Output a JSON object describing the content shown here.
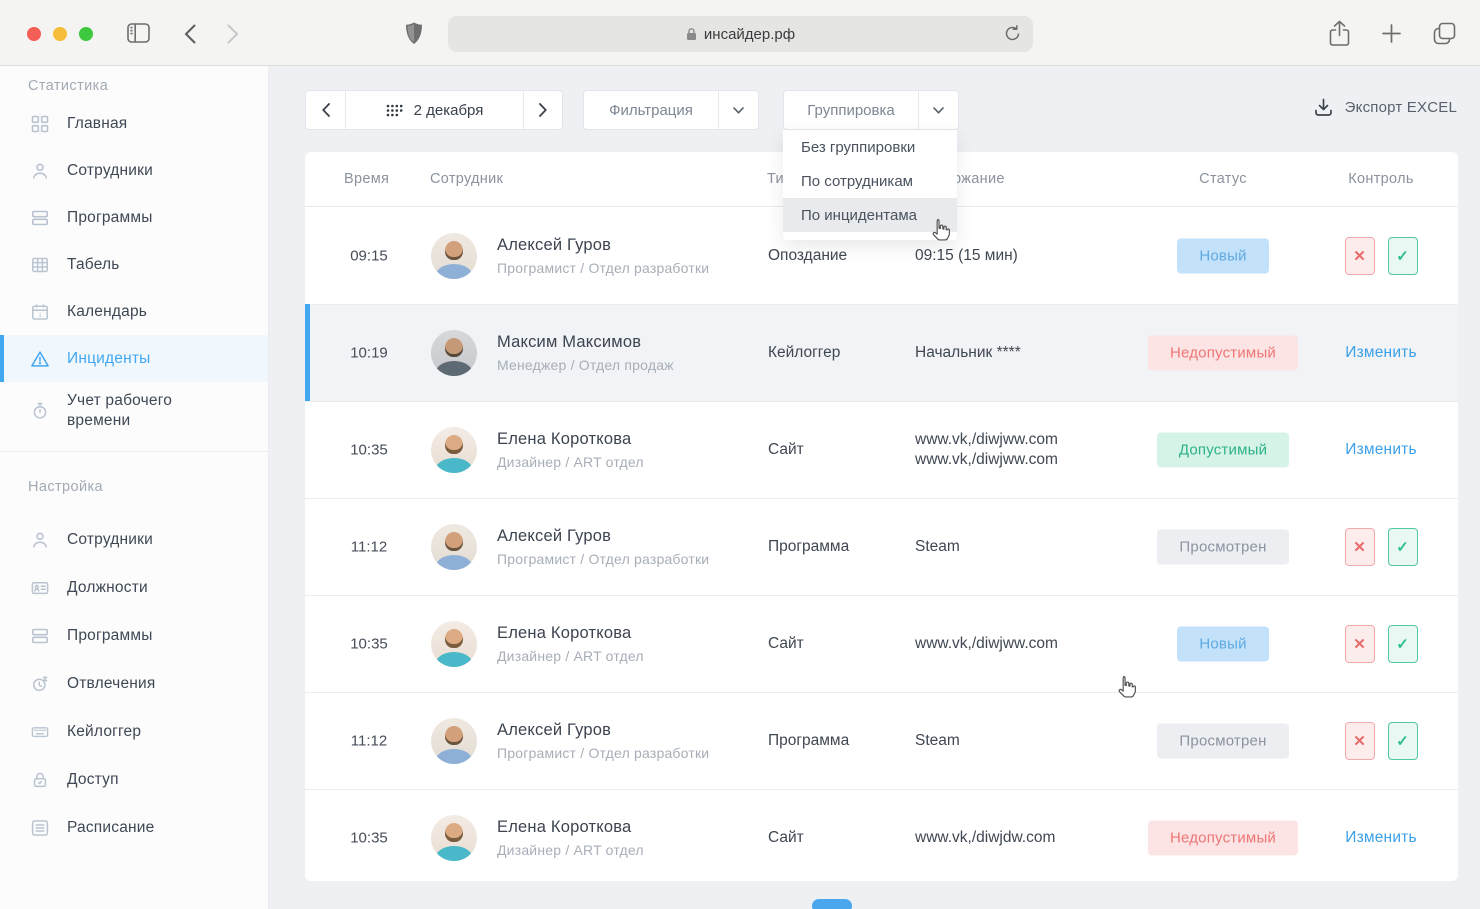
{
  "browser": {
    "url": "инсайдер.рф",
    "icons": [
      "sidebar-toggle-icon",
      "back-icon",
      "forward-icon",
      "shield-icon",
      "lock-icon",
      "reload-icon",
      "share-icon",
      "new-tab-icon",
      "tabs-icon"
    ]
  },
  "sidebar": {
    "sections": [
      {
        "label": "Статистика",
        "items": [
          {
            "icon": "dashboard-icon",
            "label": "Главная",
            "active": false
          },
          {
            "icon": "user-icon",
            "label": "Сотрудники",
            "active": false
          },
          {
            "icon": "programs-icon",
            "label": "Программы",
            "active": false
          },
          {
            "icon": "timesheet-icon",
            "label": "Табель",
            "active": false
          },
          {
            "icon": "calendar-icon",
            "label": "Календарь",
            "active": false
          },
          {
            "icon": "warning-icon",
            "label": "Инциденты",
            "active": true
          },
          {
            "icon": "stopwatch-icon",
            "label": "Учет рабочего времени",
            "active": false
          }
        ]
      },
      {
        "label": "Настройка",
        "items": [
          {
            "icon": "user-icon",
            "label": "Сотрудники",
            "active": false
          },
          {
            "icon": "idcard-icon",
            "label": "Должности",
            "active": false
          },
          {
            "icon": "programs-icon",
            "label": "Программы",
            "active": false
          },
          {
            "icon": "clock-z-icon",
            "label": "Отвлечения",
            "active": false
          },
          {
            "icon": "keyboard-icon",
            "label": "Кейлоггер",
            "active": false
          },
          {
            "icon": "lock-icon",
            "label": "Доступ",
            "active": false
          },
          {
            "icon": "list-icon",
            "label": "Расписание",
            "active": false
          }
        ]
      }
    ]
  },
  "toolbar": {
    "date_label": "2 декабря",
    "filter_label": "Фильтрация",
    "group_label": "Группировка",
    "group_menu": {
      "items": [
        "Без группировки",
        "По сотрудникам",
        "По инцидентама"
      ],
      "highlighted_index": 2
    },
    "export_label": "Экспорт EXCEL"
  },
  "table": {
    "headers": [
      "Время",
      "Сотрудник",
      "Тип",
      "Содержание",
      "Статус",
      "Контроль"
    ],
    "edit_label": "Изменить",
    "rows": [
      {
        "time": "09:15",
        "avatar": "alexey",
        "name": "Алексей Гуров",
        "role": "Програмист / Отдел разработки",
        "type": "Опоздание",
        "content": [
          "09:15 (15 мин)"
        ],
        "status": "Новый",
        "status_kind": "new",
        "control": "buttons",
        "highlighted": false
      },
      {
        "time": "10:19",
        "avatar": "maxim",
        "name": "Максим Максимов",
        "role": "Менеджер / Отдел продаж",
        "type": "Кейлоггер",
        "content": [
          "Начальник ****"
        ],
        "status": "Недопустимый",
        "status_kind": "invalid",
        "control": "edit",
        "highlighted": true
      },
      {
        "time": "10:35",
        "avatar": "elena",
        "name": "Елена Короткова",
        "role": "Дизайнер / ART отдел",
        "type": "Сайт",
        "content": [
          "www.vk,/diwjww.com",
          "www.vk,/diwjww.com"
        ],
        "status": "Допустимый",
        "status_kind": "valid",
        "control": "edit",
        "highlighted": false
      },
      {
        "time": "11:12",
        "avatar": "alexey",
        "name": "Алексей Гуров",
        "role": "Програмист / Отдел разработки",
        "type": "Программа",
        "content": [
          "Steam"
        ],
        "status": "Просмотрен",
        "status_kind": "viewed",
        "control": "buttons",
        "highlighted": false
      },
      {
        "time": "10:35",
        "avatar": "elena",
        "name": "Елена Короткова",
        "role": "Дизайнер / ART отдел",
        "type": "Сайт",
        "content": [
          "www.vk,/diwjww.com"
        ],
        "status": "Новый",
        "status_kind": "new",
        "control": "buttons",
        "highlighted": false
      },
      {
        "time": "11:12",
        "avatar": "alexey",
        "name": "Алексей Гуров",
        "role": "Програмист / Отдел разработки",
        "type": "Программа",
        "content": [
          "Steam"
        ],
        "status": "Просмотрен",
        "status_kind": "viewed",
        "control": "buttons",
        "highlighted": false
      },
      {
        "time": "10:35",
        "avatar": "elena",
        "name": "Елена Короткова",
        "role": "Дизайнер / ART отдел",
        "type": "Сайт",
        "content": [
          "www.vk,/diwjdw.com"
        ],
        "status": "Недопустимый",
        "status_kind": "invalid",
        "control": "edit",
        "highlighted": false
      }
    ]
  },
  "colors": {
    "accent": "#41a7ee",
    "status_new_bg": "#c3e2f9",
    "status_new_text": "#5ea9e2",
    "status_invalid_bg": "#fce4e4",
    "status_invalid_text": "#ed7575",
    "status_valid_bg": "#d5f3e6",
    "status_valid_text": "#2db188",
    "status_viewed_bg": "#eceef2",
    "status_viewed_text": "#8b93a0"
  }
}
